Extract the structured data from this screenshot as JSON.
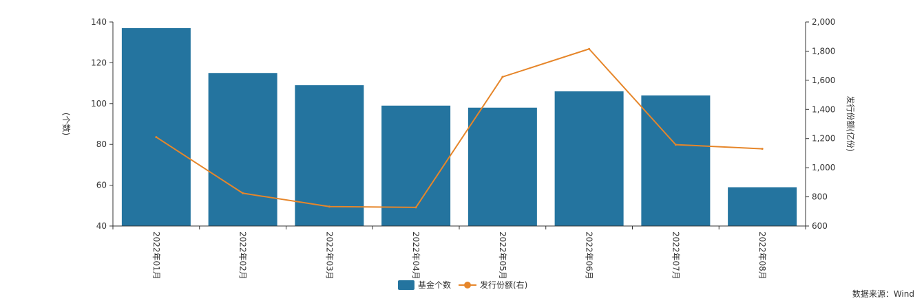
{
  "chart_data": {
    "type": "bar",
    "categories": [
      "2022年01月",
      "2022年02月",
      "2022年03月",
      "2022年04月",
      "2022年05月",
      "2022年06月",
      "2022年07月",
      "2022年08月"
    ],
    "series": [
      {
        "name": "基金个数",
        "type": "bar",
        "axis": "left",
        "values": [
          137,
          115,
          109,
          99,
          98,
          106,
          104,
          59
        ]
      },
      {
        "name": "发行份额(右)",
        "type": "line",
        "axis": "right",
        "values": [
          1210,
          825,
          733,
          728,
          1623,
          1815,
          1158,
          1130
        ]
      }
    ],
    "ylabel": "(个数)",
    "ylabel_right": "发行份额(亿份)",
    "ylim": [
      40,
      140
    ],
    "ylim_right": [
      600,
      2000
    ],
    "yticks": [
      40,
      60,
      80,
      100,
      120,
      140
    ],
    "yticks_right": [
      600,
      800,
      1000,
      1200,
      1400,
      1600,
      1800,
      2000
    ],
    "ytick_labels_right": [
      "600",
      "800",
      "1,000",
      "1,200",
      "1,400",
      "1,600",
      "1,800",
      "2,000"
    ],
    "legend_position": "bottom-center",
    "grid": false,
    "colors": {
      "bar": "#24749f",
      "line": "#e6862a",
      "axis": "#333333"
    }
  },
  "source_note": "数据来源：Wind"
}
